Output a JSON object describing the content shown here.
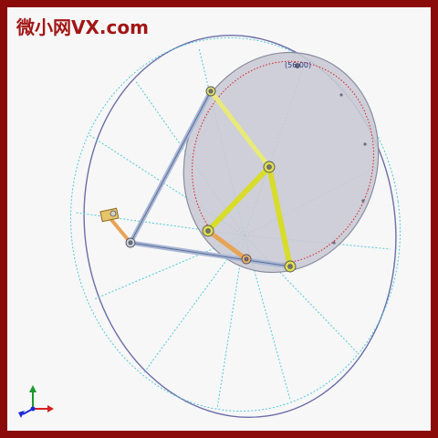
{
  "watermark": {
    "text": "微小网VX.com",
    "color": "#a31616"
  },
  "viewport": {
    "scene": "four-bar linkage mechanism",
    "coordinate_readout": "(56.00)"
  },
  "triad": {
    "axes": [
      "x",
      "y",
      "z"
    ],
    "colors": {
      "x": "#d62020",
      "y": "#1a9a2a",
      "z": "#1a2ad6"
    }
  },
  "colors": {
    "frame": "#8b0a0a",
    "background": "#f7f7f7",
    "outer_ellipse": "#6c6ea8",
    "construction_lines": "#52c8d8",
    "disc_fill": "#c9cad4",
    "pitch_circle": "#e01a2a",
    "link_blue": "#a7b6d6",
    "link_yellow": "#d8dc2a",
    "link_orange": "#e8a456"
  }
}
